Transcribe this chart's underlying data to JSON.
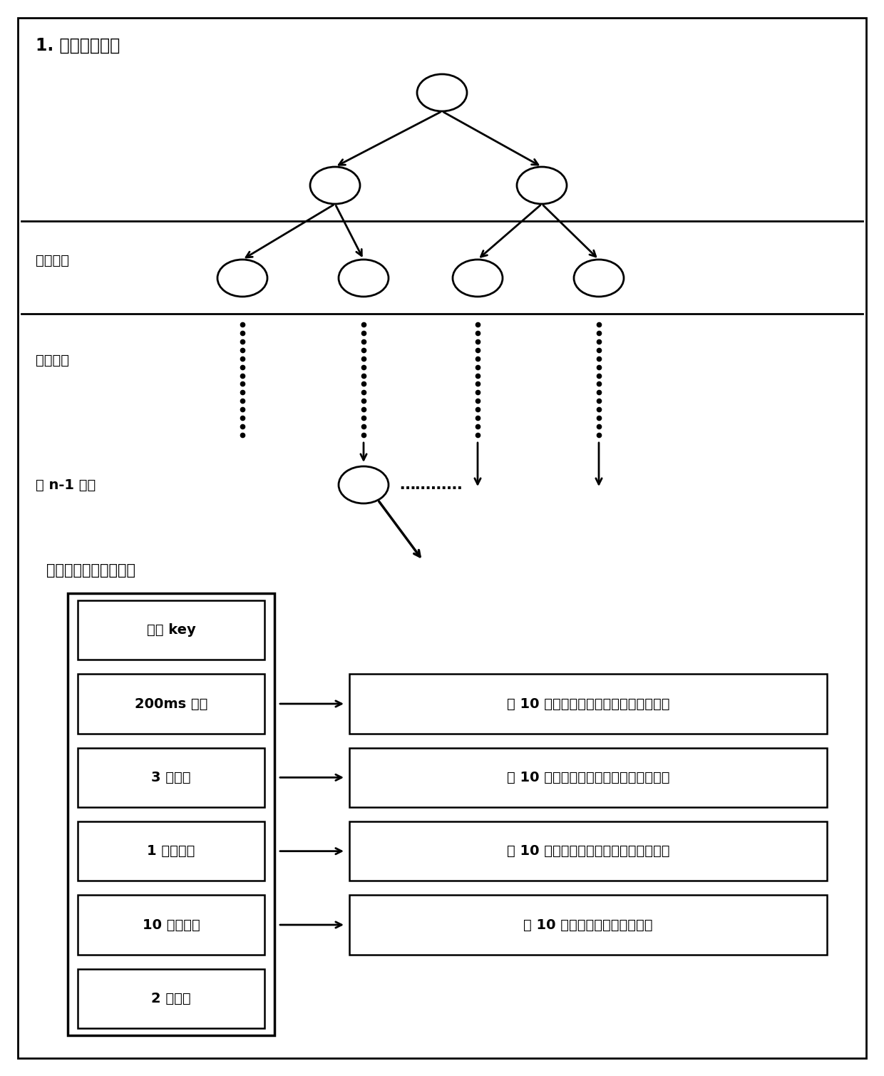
{
  "title_tree": "1. 平衡二叉树：",
  "label_layer2": "第二层：",
  "label_layer3": "第三层：",
  "label_layern": "第 n-1 层：",
  "title_ds": "二叉树节点的数据结构",
  "left_box_labels": [
    "键值 key",
    "200ms 指针",
    "3 秒指针",
    "1 分钟指针",
    "10 分钟指针",
    "2 小时值"
  ],
  "right_box_labels": [
    "为 10 分钟内各时刻点数据分配的内存区",
    "为 10 分钟内各时刻点数据分配的内存区",
    "为 10 分钟内各时刻点数据分配的内存区",
    "为 10 分钟内数据分配的内存区"
  ],
  "bg_color": "#ffffff",
  "border_color": "#000000",
  "text_color": "#000000"
}
